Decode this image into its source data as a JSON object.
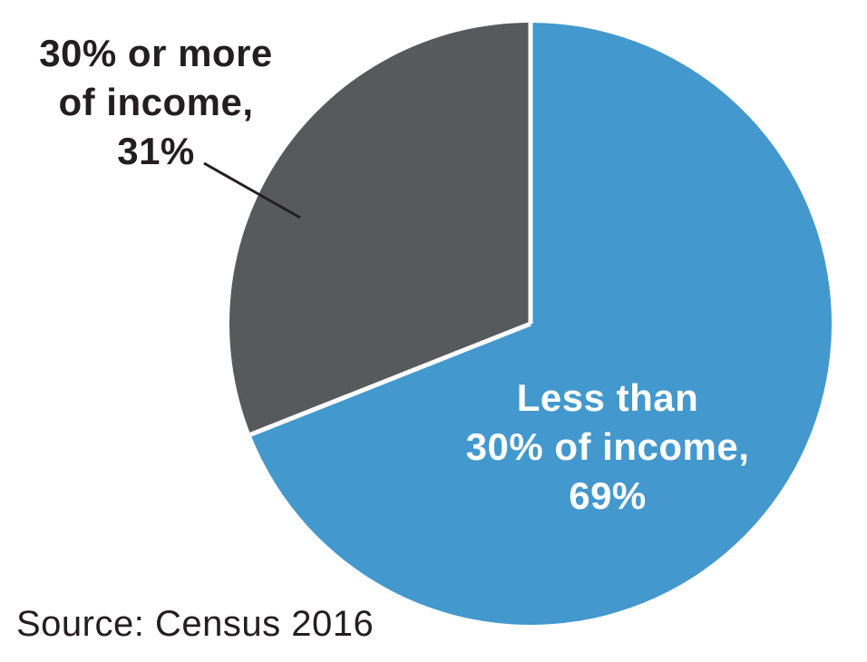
{
  "chart_data": {
    "type": "pie",
    "title": "",
    "slices": [
      {
        "id": "less-than-30",
        "label": "Less than 30% of income",
        "value": 69,
        "percent_label": "69%",
        "color": "#4398ce",
        "callout_text": "Less than\n30% of income,\n69%",
        "callout_color": "#ffffff"
      },
      {
        "id": "30-or-more",
        "label": "30% or more of income",
        "value": 31,
        "percent_label": "31%",
        "color": "#58595b",
        "callout_text": "30% or more\nof income,\n31%",
        "callout_color": "#231f20"
      }
    ],
    "start_angle_deg": 0,
    "direction": "clockwise",
    "separator_color": "#ffffff",
    "background_color": "#ffffff",
    "leader_line_color": "#231f20",
    "source": "Source: Census 2016"
  }
}
